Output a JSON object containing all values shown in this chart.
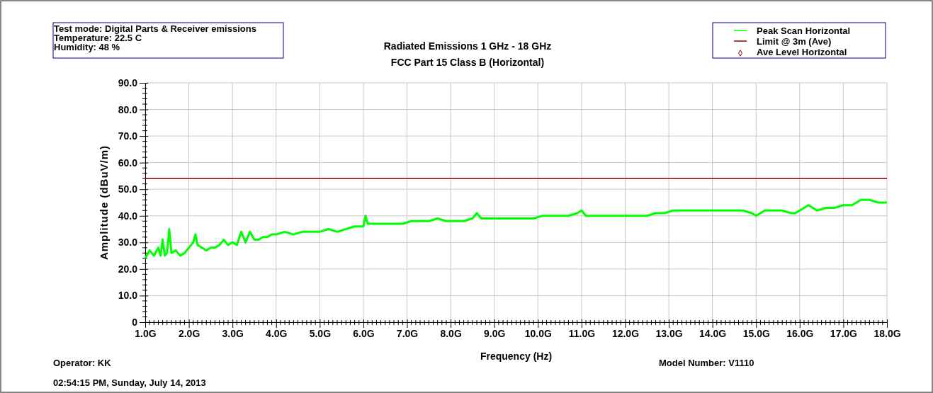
{
  "chart_data": {
    "type": "line",
    "title": "Radiated Emissions 1 GHz - 18 GHz",
    "subtitle": "FCC Part 15 Class B (Horizontal)",
    "xlabel": "Frequency (Hz)",
    "ylabel": "Amplitude (dBuV/m)",
    "annotations": [
      "Test mode: Digital Parts & Receiver emissions",
      "Temperature: 22.5 C",
      "Humidity: 48 %",
      "Operator: KK",
      "02:54:15 PM, Sunday, July 14, 2013",
      "Model Number: V1110"
    ],
    "xlim": [
      1,
      18
    ],
    "ylim": [
      0,
      90
    ],
    "xticks": [
      {
        "value": 1,
        "label": "1.0G"
      },
      {
        "value": 2,
        "label": "2.0G"
      },
      {
        "value": 3,
        "label": "3.0G"
      },
      {
        "value": 4,
        "label": "4.0G"
      },
      {
        "value": 5,
        "label": "5.0G"
      },
      {
        "value": 6,
        "label": "6.0G"
      },
      {
        "value": 7,
        "label": "7.0G"
      },
      {
        "value": 8,
        "label": "8.0G"
      },
      {
        "value": 9,
        "label": "9.0G"
      },
      {
        "value": 10,
        "label": "10.0G"
      },
      {
        "value": 11,
        "label": "11.0G"
      },
      {
        "value": 12,
        "label": "12.0G"
      },
      {
        "value": 13,
        "label": "13.0G"
      },
      {
        "value": 14,
        "label": "14.0G"
      },
      {
        "value": 15,
        "label": "15.0G"
      },
      {
        "value": 16,
        "label": "16.0G"
      },
      {
        "value": 17,
        "label": "17.0G"
      },
      {
        "value": 18,
        "label": "18.0G"
      }
    ],
    "yticks": [
      0,
      {
        "value": 10,
        "label": "10.0"
      },
      {
        "value": 20,
        "label": "20.0"
      },
      {
        "value": 30,
        "label": "30.0"
      },
      {
        "value": 40,
        "label": "40.0"
      },
      {
        "value": 50,
        "label": "50.0"
      },
      {
        "value": 60,
        "label": "60.0"
      },
      {
        "value": 70,
        "label": "70.0"
      },
      {
        "value": 80,
        "label": "80.0"
      },
      {
        "value": 90,
        "label": "90.0"
      }
    ],
    "grid": true,
    "legend": "top right",
    "ref_lines": [
      {
        "axis": "y",
        "value": 54,
        "label": "Limit @ 3m (Ave)",
        "color": "#990000"
      }
    ],
    "series": [
      {
        "name": "Peak Scan Horizontal",
        "color": "#00ff00",
        "x": [
          1.0,
          1.1,
          1.2,
          1.3,
          1.35,
          1.4,
          1.45,
          1.5,
          1.55,
          1.6,
          1.7,
          1.8,
          1.9,
          2.0,
          2.1,
          2.15,
          2.2,
          2.3,
          2.4,
          2.5,
          2.6,
          2.7,
          2.8,
          2.9,
          3.0,
          3.1,
          3.2,
          3.3,
          3.4,
          3.5,
          3.6,
          3.7,
          3.8,
          3.9,
          4.0,
          4.2,
          4.4,
          4.6,
          4.8,
          5.0,
          5.2,
          5.4,
          5.6,
          5.8,
          6.0,
          6.05,
          6.1,
          6.3,
          6.5,
          6.7,
          6.9,
          7.1,
          7.3,
          7.5,
          7.7,
          7.9,
          8.1,
          8.3,
          8.5,
          8.6,
          8.7,
          8.9,
          9.1,
          9.3,
          9.5,
          9.7,
          9.9,
          10.1,
          10.3,
          10.5,
          10.7,
          10.9,
          11.0,
          11.1,
          11.3,
          11.5,
          11.7,
          11.9,
          12.1,
          12.3,
          12.5,
          12.7,
          12.9,
          13.1,
          13.3,
          13.5,
          13.7,
          13.9,
          14.1,
          14.3,
          14.5,
          14.7,
          14.9,
          15.0,
          15.2,
          15.4,
          15.6,
          15.8,
          15.9,
          16.0,
          16.2,
          16.4,
          16.6,
          16.8,
          17.0,
          17.2,
          17.4,
          17.6,
          17.8,
          18.0
        ],
        "values": [
          24,
          27,
          25,
          28,
          25,
          31,
          25,
          26,
          35,
          26,
          27,
          25,
          26,
          28,
          30,
          33,
          29,
          28,
          27,
          28,
          28,
          29,
          31,
          29,
          30,
          29,
          34,
          30,
          34,
          31,
          31,
          32,
          32,
          33,
          33,
          34,
          33,
          34,
          34,
          34,
          35,
          34,
          35,
          36,
          36,
          40,
          37,
          37,
          37,
          37,
          37,
          38,
          38,
          38,
          39,
          38,
          38,
          38,
          39,
          41,
          39,
          39,
          39,
          39,
          39,
          39,
          39,
          40,
          40,
          40,
          40,
          41,
          42,
          40,
          40,
          40,
          40,
          40,
          40,
          40,
          40,
          41,
          41,
          42,
          42,
          42,
          42,
          42,
          42,
          42,
          42,
          42,
          41,
          40,
          42,
          42,
          42,
          41,
          41,
          42,
          44,
          42,
          43,
          43,
          44,
          44,
          46,
          46,
          45,
          45
        ]
      },
      {
        "name": "Ave Level Horizontal",
        "type": "scatter",
        "color": "#990000",
        "marker": "diamond"
      }
    ]
  }
}
